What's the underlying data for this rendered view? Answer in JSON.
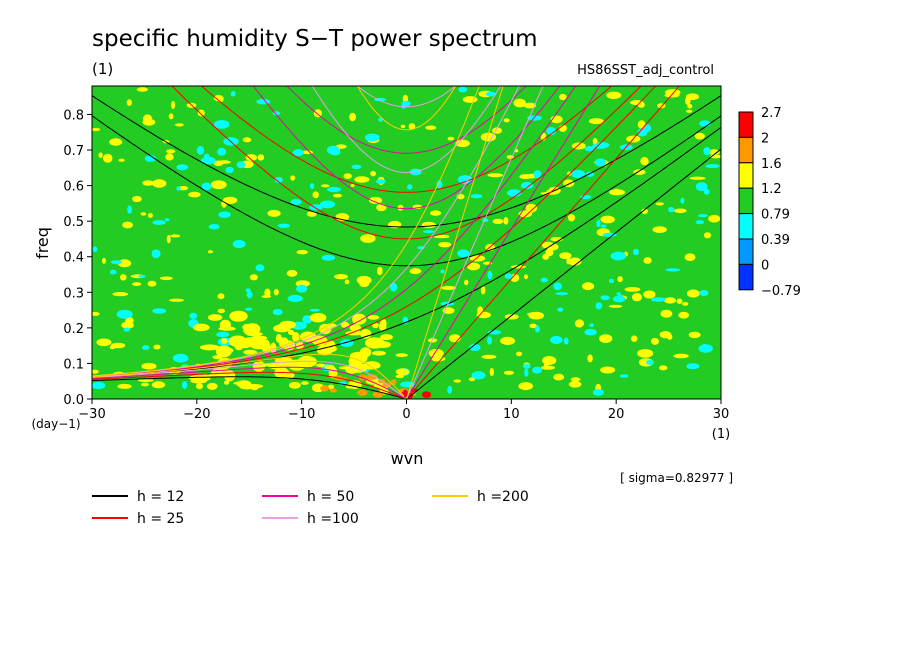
{
  "chart_data": {
    "type": "heatmap",
    "title": "specific humidity S−T power spectrum",
    "subtitle_left": "(1)",
    "subtitle_right": "HS86SST_adj_control",
    "xlabel": "wvn",
    "ylabel": "freq",
    "x_unit": "(1)",
    "y_unit": "(day−1)",
    "xlim": [
      -30,
      30
    ],
    "ylim": [
      0,
      0.88
    ],
    "x_ticks": [
      "−30",
      "−20",
      "−10",
      "0",
      "10",
      "20",
      "30"
    ],
    "x_tick_values": [
      -30,
      -20,
      -10,
      0,
      10,
      20,
      30
    ],
    "y_ticks": [
      "0.0",
      "0.1",
      "0.2",
      "0.3",
      "0.4",
      "0.5",
      "0.6",
      "0.7",
      "0.8"
    ],
    "y_tick_values": [
      0,
      0.1,
      0.2,
      0.3,
      0.4,
      0.5,
      0.6,
      0.7,
      0.8
    ],
    "background_level_color": "#22cc22",
    "colorbar": {
      "labels": [
        "2.7",
        "2",
        "1.6",
        "1.2",
        "0.79",
        "0.39",
        "0",
        "−0.79"
      ],
      "colors": [
        "#ff0000",
        "#ff9900",
        "#ffff00",
        "#22cc22",
        "#00ffff",
        "#0099ff",
        "#0033ff"
      ]
    },
    "sigma_text": "[ sigma=0.82977 ]",
    "dispersion_curves": [
      {
        "label": "h = 12",
        "h": 12,
        "color": "#000000"
      },
      {
        "label": "h = 25",
        "h": 25,
        "color": "#ff0000"
      },
      {
        "label": "h = 50",
        "h": 50,
        "color": "#ee00aa"
      },
      {
        "label": "h =100",
        "h": 100,
        "color": "#e8a0e8"
      },
      {
        "label": "h =200",
        "h": 200,
        "color": "#ffcc00"
      }
    ]
  }
}
